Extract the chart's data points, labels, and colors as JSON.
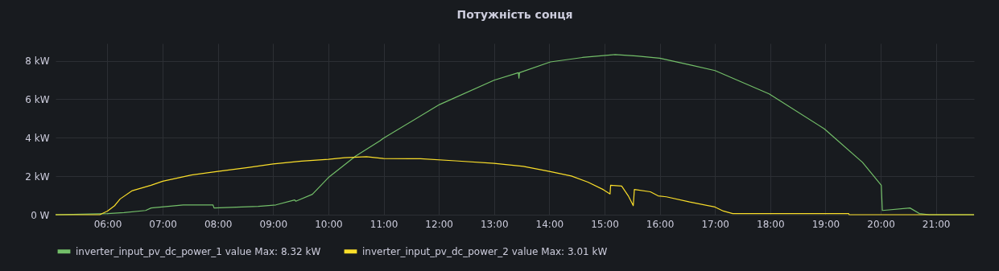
{
  "chart_data": {
    "type": "line",
    "title": "Потужність сонця",
    "xlim": [
      5.06,
      21.69
    ],
    "ylim": [
      0,
      8.9
    ],
    "xticks": [
      {
        "value": 6,
        "label": "06:00"
      },
      {
        "value": 7,
        "label": "07:00"
      },
      {
        "value": 8,
        "label": "08:00"
      },
      {
        "value": 9,
        "label": "09:00"
      },
      {
        "value": 10,
        "label": "10:00"
      },
      {
        "value": 11,
        "label": "11:00"
      },
      {
        "value": 12,
        "label": "12:00"
      },
      {
        "value": 13,
        "label": "13:00"
      },
      {
        "value": 14,
        "label": "14:00"
      },
      {
        "value": 15,
        "label": "15:00"
      },
      {
        "value": 16,
        "label": "16:00"
      },
      {
        "value": 17,
        "label": "17:00"
      },
      {
        "value": 18,
        "label": "18:00"
      },
      {
        "value": 19,
        "label": "19:00"
      },
      {
        "value": 20,
        "label": "20:00"
      },
      {
        "value": 21,
        "label": "21:00"
      }
    ],
    "yticks": [
      {
        "value": 0,
        "label": "0 W"
      },
      {
        "value": 2,
        "label": "2 kW"
      },
      {
        "value": 4,
        "label": "4 kW"
      },
      {
        "value": 6,
        "label": "6 kW"
      },
      {
        "value": 8,
        "label": "8 kW"
      }
    ],
    "grid": true,
    "legend": "bottom left",
    "marker": "none",
    "line_style": "solid",
    "series": [
      {
        "name": "inverter_input_pv_dc_power_1 value  Max: 8.32 kW",
        "color": "#73bf69",
        "x": [
          5.06,
          6.0,
          6.3,
          6.69,
          6.79,
          7.37,
          7.91,
          7.93,
          8.73,
          9.05,
          9.39,
          9.41,
          9.71,
          10.0,
          10.49,
          10.93,
          11.0,
          12.01,
          13.0,
          13.44,
          13.45,
          13.46,
          14.02,
          14.6,
          15.19,
          15.58,
          16.0,
          16.56,
          17.0,
          17.98,
          18.98,
          19.67,
          20.01,
          20.03,
          20.53,
          20.7,
          20.88,
          21.69
        ],
        "values": [
          0,
          0.06,
          0.11,
          0.22,
          0.35,
          0.51,
          0.51,
          0.35,
          0.43,
          0.51,
          0.77,
          0.7,
          1.06,
          1.93,
          3.04,
          3.83,
          3.98,
          5.72,
          6.99,
          7.38,
          7.1,
          7.38,
          7.94,
          8.17,
          8.32,
          8.25,
          8.13,
          7.78,
          7.49,
          6.28,
          4.46,
          2.72,
          1.53,
          0.22,
          0.35,
          0.06,
          0,
          0
        ]
      },
      {
        "name": "inverter_input_pv_dc_power_2 value  Max: 3.01 kW",
        "color": "#fade2a",
        "x": [
          5.06,
          5.86,
          6.0,
          6.13,
          6.23,
          6.45,
          6.79,
          7.0,
          7.52,
          8.0,
          8.54,
          9.0,
          9.51,
          10.0,
          10.29,
          10.69,
          11.0,
          11.67,
          12.3,
          13.0,
          13.53,
          14.0,
          14.4,
          14.7,
          14.98,
          15.1,
          15.11,
          15.31,
          15.43,
          15.52,
          15.54,
          15.83,
          15.97,
          16.12,
          16.54,
          17.0,
          17.15,
          17.32,
          19.42,
          19.43,
          21.69
        ],
        "values": [
          0,
          0,
          0.19,
          0.47,
          0.82,
          1.25,
          1.53,
          1.74,
          2.06,
          2.25,
          2.45,
          2.64,
          2.78,
          2.88,
          2.96,
          3.01,
          2.92,
          2.91,
          2.8,
          2.67,
          2.51,
          2.25,
          2.01,
          1.69,
          1.3,
          1.08,
          1.53,
          1.49,
          0.98,
          0.47,
          1.31,
          1.19,
          0.98,
          0.93,
          0.66,
          0.4,
          0.19,
          0.06,
          0.06,
          0,
          0
        ]
      }
    ]
  }
}
